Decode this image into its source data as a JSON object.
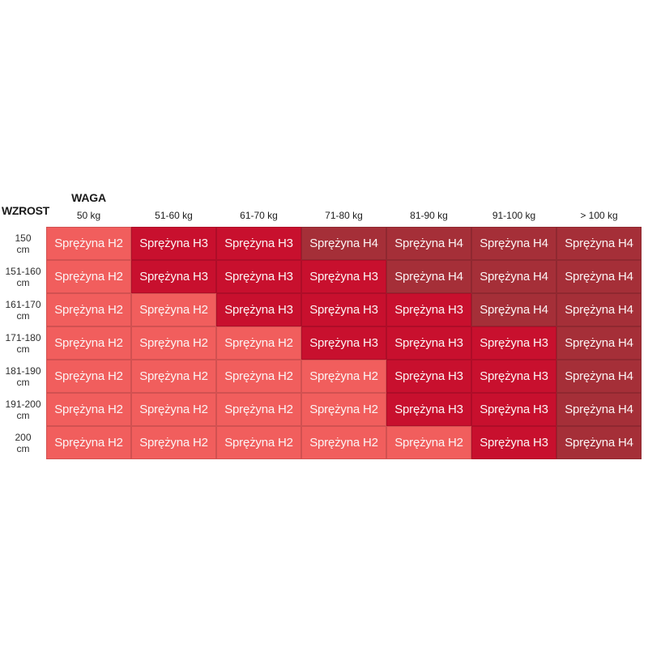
{
  "chart_data": {
    "type": "heatmap",
    "x_axis_title": "WAGA",
    "y_axis_title": "WZROST",
    "columns": [
      "50 kg",
      "51-60 kg",
      "61-70 kg",
      "71-80 kg",
      "81-90 kg",
      "91-100 kg",
      "> 100 kg"
    ],
    "rows": [
      {
        "label": "150",
        "unit": "cm"
      },
      {
        "label": "151-160",
        "unit": "cm"
      },
      {
        "label": "161-170",
        "unit": "cm"
      },
      {
        "label": "171-180",
        "unit": "cm"
      },
      {
        "label": "181-190",
        "unit": "cm"
      },
      {
        "label": "191-200",
        "unit": "cm"
      },
      {
        "label": "200",
        "unit": "cm"
      }
    ],
    "cell_text_prefix": "Sprężyna",
    "matrix": [
      [
        "H2",
        "H3",
        "H3",
        "H4",
        "H4",
        "H4",
        "H4"
      ],
      [
        "H2",
        "H3",
        "H3",
        "H3",
        "H4",
        "H4",
        "H4"
      ],
      [
        "H2",
        "H2",
        "H3",
        "H3",
        "H3",
        "H4",
        "H4"
      ],
      [
        "H2",
        "H2",
        "H2",
        "H3",
        "H3",
        "H3",
        "H4"
      ],
      [
        "H2",
        "H2",
        "H2",
        "H2",
        "H3",
        "H3",
        "H4"
      ],
      [
        "H2",
        "H2",
        "H2",
        "H2",
        "H3",
        "H3",
        "H4"
      ],
      [
        "H2",
        "H2",
        "H2",
        "H2",
        "H2",
        "H3",
        "H4"
      ]
    ],
    "colors": {
      "H2": "#F15E5D",
      "H3": "#C8102E",
      "H4": "#A52F38"
    },
    "cell_text_color": "#FBF4F4",
    "grid": "off",
    "legend": "none",
    "background": "#ffffff"
  }
}
